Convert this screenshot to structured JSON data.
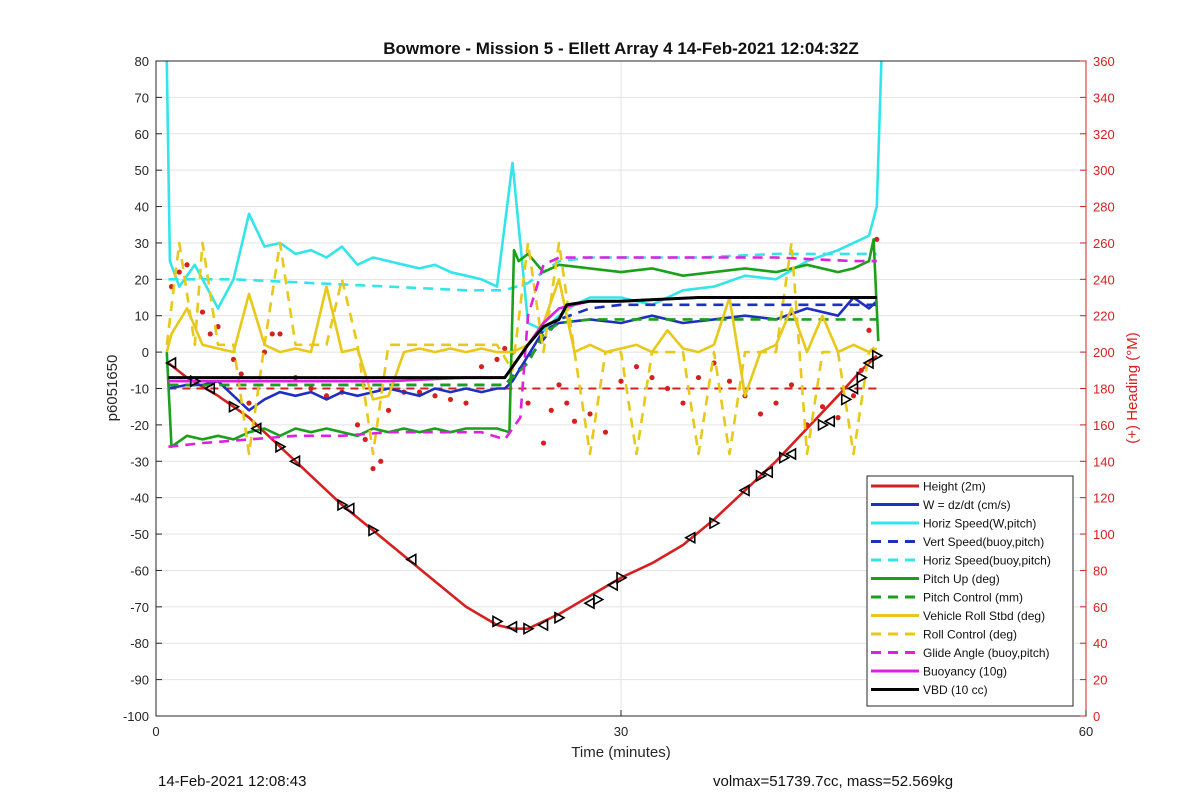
{
  "chart_data": {
    "type": "line",
    "title": "Bowmore - Mission 5 - Ellett Array 4 14-Feb-2021 12:04:32Z",
    "xlabel": "Time (minutes)",
    "ylabel": "p6051650",
    "y2label": "(+) Heading (°M)",
    "xlim": [
      0,
      60
    ],
    "ylim": [
      -100,
      80
    ],
    "y2lim": [
      0,
      360
    ],
    "xticks": [
      0,
      30,
      60
    ],
    "yticks": [
      -100,
      -90,
      -80,
      -70,
      -60,
      -50,
      -40,
      -30,
      -20,
      -10,
      0,
      10,
      20,
      30,
      40,
      50,
      60,
      70,
      80
    ],
    "y2ticks": [
      0,
      20,
      40,
      60,
      80,
      100,
      120,
      140,
      160,
      180,
      200,
      220,
      240,
      260,
      280,
      300,
      320,
      340,
      360
    ],
    "grid": true,
    "legend_position": "bottom-right",
    "series": [
      {
        "name": "Height (2m)",
        "color": "#d62020",
        "style": "solid",
        "x": [
          0.8,
          2,
          4,
          6,
          8,
          10,
          12,
          14,
          16,
          18,
          20,
          22,
          23,
          24,
          25,
          26,
          28,
          30,
          32,
          34,
          36,
          38,
          40,
          42,
          44,
          45.5,
          46.5
        ],
        "y": [
          -3,
          -7,
          -12,
          -18,
          -26,
          -34,
          -42,
          -49,
          -56,
          -63,
          -70,
          -75,
          -76,
          -76,
          -74,
          -72,
          -67,
          -62,
          -58,
          -53,
          -46,
          -38,
          -30,
          -21,
          -12,
          -5,
          -1
        ]
      },
      {
        "name": "W = dz/dt (cm/s)",
        "color": "#1f2fc0",
        "style": "solid",
        "x": [
          0.8,
          2,
          3,
          4,
          5,
          6,
          7,
          8,
          9,
          10,
          11,
          12,
          13,
          14,
          15,
          16,
          17,
          18,
          19,
          20,
          21,
          22,
          22.5,
          23,
          24,
          25,
          26,
          28,
          30,
          32,
          34,
          36,
          38,
          40,
          42,
          44,
          45,
          46,
          46.5
        ],
        "y": [
          -10,
          -9,
          -9,
          -8,
          -12,
          -16,
          -13,
          -11,
          -12,
          -11,
          -13,
          -11,
          -12,
          -11,
          -10,
          -11,
          -12,
          -10,
          -11,
          -10,
          -11,
          -10,
          -10,
          -8,
          -1,
          6,
          8,
          9,
          8,
          10,
          8,
          9,
          10,
          9,
          12,
          10,
          15,
          12,
          14
        ]
      },
      {
        "name": "Horiz Speed(W,pitch)",
        "color": "#33e5ea",
        "style": "solid",
        "x": [
          0.7,
          0.9,
          1.5,
          2.5,
          3.5,
          4,
          5,
          5.5,
          6,
          7,
          8,
          9,
          10,
          11,
          12,
          13,
          14,
          15,
          16,
          17,
          18,
          19,
          20,
          21,
          22,
          22.5,
          23,
          23.5,
          24,
          25,
          26,
          27,
          28,
          30,
          32,
          34,
          36,
          38,
          40,
          42,
          44,
          45,
          46,
          46.5,
          46.8
        ],
        "y": [
          80,
          25,
          18,
          24,
          16,
          12,
          20,
          29,
          38,
          29,
          30,
          27,
          28,
          26,
          29,
          24,
          26,
          25,
          24,
          23,
          24,
          22,
          21,
          20,
          18,
          35,
          52,
          30,
          8,
          6,
          10,
          13,
          15,
          15,
          13,
          17,
          18,
          21,
          20,
          25,
          28,
          30,
          32,
          40,
          80
        ]
      },
      {
        "name": "Vert Speed(buoy,pitch)",
        "color": "#1f2fc0",
        "style": "dashed",
        "x": [
          0.8,
          5,
          10,
          15,
          20,
          22.5,
          24,
          26,
          28,
          30,
          35,
          40,
          45,
          46.5
        ],
        "y": [
          -9,
          -9,
          -9,
          -9,
          -9,
          -9,
          -2,
          9,
          12,
          13,
          13,
          13,
          13,
          13
        ]
      },
      {
        "name": "Horiz Speed(buoy,pitch)",
        "color": "#33e5ea",
        "style": "dashed",
        "x": [
          0.8,
          5,
          10,
          15,
          20,
          22.5,
          24,
          25,
          26,
          28,
          30,
          35,
          40,
          45,
          46.5
        ],
        "y": [
          20,
          20,
          19,
          18,
          17,
          17,
          19,
          22,
          25,
          26,
          26,
          26,
          27,
          27,
          27
        ]
      },
      {
        "name": "Pitch Up (deg)",
        "color": "#1aa01a",
        "style": "solid",
        "x": [
          0.7,
          1,
          2,
          3,
          4,
          5,
          6,
          7,
          8,
          9,
          10,
          11,
          12,
          13,
          14,
          15,
          16,
          17,
          18,
          19,
          20,
          21,
          22,
          22.8,
          23.1,
          23.4,
          24,
          25,
          26,
          28,
          30,
          32,
          34,
          36,
          38,
          40,
          42,
          44,
          45,
          46,
          46.3,
          46.6
        ],
        "y": [
          0,
          -26,
          -23,
          -24,
          -23,
          -24,
          -22,
          -21,
          -23,
          -21,
          -22,
          -21,
          -22,
          -23,
          -21,
          -22,
          -21,
          -22,
          -21,
          -22,
          -21,
          -21,
          -21,
          -22,
          28,
          25,
          27,
          22,
          24,
          23,
          22,
          23,
          21,
          22,
          23,
          22,
          24,
          22,
          23,
          25,
          31,
          3
        ]
      },
      {
        "name": "Pitch Control (mm)",
        "color": "#1aa01a",
        "style": "dashed",
        "x": [
          0.8,
          5,
          10,
          15,
          20,
          22.5,
          24,
          25,
          26,
          28,
          30,
          35,
          40,
          45,
          46.5
        ],
        "y": [
          -9,
          -9,
          -9,
          -9,
          -9,
          -9,
          -3,
          5,
          8,
          9,
          9,
          9,
          9,
          9,
          9
        ]
      },
      {
        "name": "Vehicle Roll Stbd (deg)",
        "color": "#e8c81a",
        "style": "solid",
        "x": [
          0.7,
          1,
          2,
          3,
          4,
          5,
          6,
          7,
          8,
          9,
          10,
          11,
          12,
          13,
          14,
          15,
          16,
          17,
          18,
          19,
          20,
          21,
          22,
          23,
          24,
          25,
          26,
          27,
          28,
          29,
          30,
          31,
          32,
          33,
          34,
          35,
          36,
          37,
          38,
          39,
          40,
          41,
          42,
          43,
          44,
          45,
          46,
          46.5
        ],
        "y": [
          0,
          5,
          12,
          2,
          1,
          0,
          16,
          2,
          0,
          1,
          0,
          18,
          0,
          1,
          -13,
          -12,
          0,
          1,
          0,
          1,
          0,
          1,
          0,
          0,
          2,
          8,
          20,
          0,
          2,
          0,
          1,
          2,
          0,
          6,
          1,
          0,
          2,
          15,
          -12,
          0,
          2,
          12,
          0,
          10,
          0,
          2,
          0,
          1
        ]
      },
      {
        "name": "Roll Control (deg)",
        "color": "#e8c81a",
        "style": "dashed",
        "x": [
          0.7,
          1.5,
          2.5,
          3,
          4,
          5,
          6,
          7,
          8,
          9,
          10,
          11,
          12,
          13,
          14,
          15,
          16,
          17,
          18,
          19,
          20,
          21,
          22,
          23,
          24,
          25,
          26,
          27,
          28,
          29,
          30,
          31,
          32,
          33,
          34,
          35,
          36,
          37,
          38,
          39,
          40,
          41,
          42,
          43,
          44,
          45,
          46,
          46.5
        ],
        "y": [
          2,
          30,
          2,
          30,
          2,
          2,
          -28,
          2,
          30,
          2,
          2,
          2,
          20,
          2,
          -28,
          2,
          2,
          2,
          2,
          2,
          2,
          2,
          2,
          -5,
          30,
          0,
          30,
          0,
          -28,
          0,
          0,
          -28,
          0,
          0,
          0,
          -28,
          0,
          -28,
          0,
          0,
          0,
          30,
          -28,
          0,
          0,
          -28,
          0,
          2
        ]
      },
      {
        "name": "Glide Angle (buoy,pitch)",
        "color": "#e020e0",
        "style": "dashed",
        "x": [
          0.8,
          3,
          6,
          9,
          12,
          15,
          18,
          21,
          22.5,
          23.5,
          24,
          25,
          26,
          28,
          30,
          35,
          40,
          45,
          46.5
        ],
        "y": [
          -26,
          -25,
          -24,
          -23,
          -23,
          -22,
          -22,
          -22,
          -24,
          -18,
          10,
          24,
          26,
          26,
          26,
          26,
          26,
          25,
          25
        ]
      },
      {
        "name": "Buoyancy (10g)",
        "color": "#e020e0",
        "style": "solid",
        "x": [
          0.8,
          5,
          10,
          15,
          20,
          22.5,
          24,
          25,
          26,
          28,
          30,
          35,
          40,
          45,
          46.5
        ],
        "y": [
          -8,
          -8,
          -8,
          -8,
          -7,
          -7,
          2,
          8,
          12,
          14,
          14,
          15,
          15,
          15,
          15
        ]
      },
      {
        "name": "VBD (10 cc)",
        "color": "#000000",
        "style": "solid",
        "x": [
          0.8,
          5,
          10,
          15,
          20,
          22.5,
          24,
          25,
          26,
          26.5,
          28,
          30,
          35,
          40,
          45,
          46.5
        ],
        "y": [
          -7,
          -7,
          -7,
          -7,
          -7,
          -7,
          2,
          7,
          9,
          13,
          14,
          14,
          15,
          15,
          15,
          15
        ]
      }
    ],
    "heading_series": {
      "color": "#d62020",
      "axis": "right",
      "commanded": {
        "x": [
          0.8,
          46.5
        ],
        "y": [
          180,
          180
        ],
        "style": "dashed"
      },
      "points": {
        "x": [
          1,
          1.5,
          2,
          3,
          3.5,
          4,
          5,
          5.5,
          6,
          7,
          7.5,
          8,
          9,
          10,
          11,
          12,
          13,
          13.5,
          14,
          14.5,
          15,
          16,
          17,
          18,
          19,
          20,
          21,
          22,
          22.5,
          23,
          24,
          25,
          25.5,
          26,
          26.5,
          27,
          28,
          29,
          30,
          31,
          32,
          33,
          34,
          35,
          36,
          37,
          38,
          39,
          40,
          41,
          42,
          43,
          44,
          45,
          45.5,
          46,
          46.5
        ],
        "y": [
          236,
          244,
          248,
          222,
          210,
          214,
          196,
          188,
          172,
          200,
          210,
          210,
          186,
          180,
          176,
          178,
          160,
          152,
          136,
          140,
          168,
          178,
          178,
          176,
          174,
          172,
          192,
          196,
          202,
          200,
          172,
          150,
          168,
          182,
          172,
          162,
          166,
          156,
          184,
          192,
          186,
          180,
          172,
          186,
          194,
          184,
          176,
          166,
          172,
          182,
          160,
          170,
          164,
          176,
          190,
          212,
          262
        ]
      }
    },
    "markers": {
      "marker": "triangle",
      "color": "#000000",
      "x": [
        1,
        2.5,
        3.5,
        5,
        6.5,
        8,
        9,
        12,
        12.5,
        14,
        16.5,
        22,
        23,
        24,
        25,
        26,
        28,
        28.5,
        29.5,
        30,
        34.5,
        36,
        38,
        39,
        39.5,
        40.5,
        41,
        43,
        43.5,
        44.5,
        45,
        45.5,
        46,
        46.5
      ],
      "y": [
        -3,
        -8,
        -10,
        -15,
        -21,
        -26,
        -30,
        -42,
        -43,
        -49,
        -57,
        -74,
        -75.5,
        -76,
        -75,
        -73,
        -69,
        -68,
        -64,
        -62,
        -51,
        -47,
        -38,
        -34,
        -33,
        -29,
        -28,
        -20,
        -19,
        -13,
        -10,
        -7,
        -3,
        -1
      ]
    },
    "footer_left": "14-Feb-2021 12:08:43",
    "footer_right": "volmax=51739.7cc, mass=52.569kg"
  }
}
